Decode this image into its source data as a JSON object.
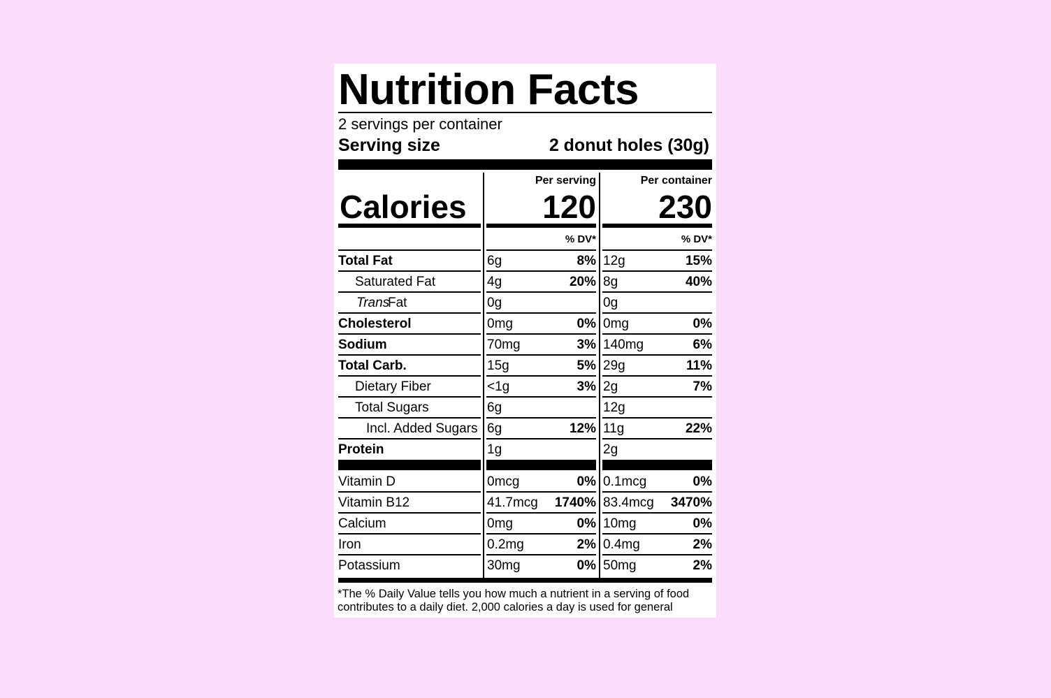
{
  "title": "Nutrition Facts",
  "servings": "2 servings per container",
  "serving_size": {
    "label": "Serving size",
    "value": "2 donut holes (30g)"
  },
  "calories": {
    "label": "Calories",
    "columns": [
      {
        "heading": "Per serving",
        "value": "120"
      },
      {
        "heading": "Per container",
        "value": "230"
      }
    ]
  },
  "dv_heading": "% DV*",
  "nutrients": [
    {
      "name": "Total Fat",
      "bold": true,
      "indent": 0,
      "serving": [
        "6g",
        "8%"
      ],
      "container": [
        "12g",
        "15%"
      ]
    },
    {
      "name": "Saturated Fat",
      "bold": false,
      "indent": 1,
      "serving": [
        "4g",
        "20%"
      ],
      "container": [
        "8g",
        "40%"
      ]
    },
    {
      "name_italic": "Trans",
      "name": "Fat",
      "bold": false,
      "indent": 1,
      "serving": [
        "0g",
        null
      ],
      "container": [
        "0g",
        null
      ]
    },
    {
      "name": "Cholesterol",
      "bold": true,
      "indent": 0,
      "serving": [
        "0mg",
        "0%"
      ],
      "container": [
        "0mg",
        "0%"
      ]
    },
    {
      "name": "Sodium",
      "bold": true,
      "indent": 0,
      "serving": [
        "70mg",
        "3%"
      ],
      "container": [
        "140mg",
        "6%"
      ]
    },
    {
      "name": "Total Carb.",
      "bold": true,
      "indent": 0,
      "serving": [
        "15g",
        "5%"
      ],
      "container": [
        "29g",
        "11%"
      ]
    },
    {
      "name": "Dietary Fiber",
      "bold": false,
      "indent": 1,
      "serving": [
        "<1g",
        "3%"
      ],
      "container": [
        "2g",
        "7%"
      ]
    },
    {
      "name": "Total Sugars",
      "bold": false,
      "indent": 1,
      "serving": [
        "6g",
        null
      ],
      "container": [
        "12g",
        null
      ]
    },
    {
      "name": "Incl. Added Sugars",
      "bold": false,
      "indent": 2,
      "serving": [
        "6g",
        "12%"
      ],
      "container": [
        "11g",
        "22%"
      ]
    },
    {
      "name": "Protein",
      "bold": true,
      "indent": 0,
      "serving": [
        "1g",
        null
      ],
      "container": [
        "2g",
        null
      ]
    }
  ],
  "vitamins": [
    {
      "name": "Vitamin D",
      "serving": [
        "0mcg",
        "0%"
      ],
      "container": [
        "0.1mcg",
        "0%"
      ]
    },
    {
      "name": "Vitamin B12",
      "serving": [
        "41.7mcg",
        "1740%"
      ],
      "container": [
        "83.4mcg",
        "3470%"
      ]
    },
    {
      "name": "Calcium",
      "serving": [
        "0mg",
        "0%"
      ],
      "container": [
        "10mg",
        "0%"
      ]
    },
    {
      "name": "Iron",
      "serving": [
        "0.2mg",
        "2%"
      ],
      "container": [
        "0.4mg",
        "2%"
      ]
    },
    {
      "name": "Potassium",
      "serving": [
        "30mg",
        "0%"
      ],
      "container": [
        "50mg",
        "2%"
      ]
    }
  ],
  "footnote": "*The % Daily Value tells you how much a nutrient in a serving of food contributes to a daily diet. 2,000 calories a day is used for general"
}
